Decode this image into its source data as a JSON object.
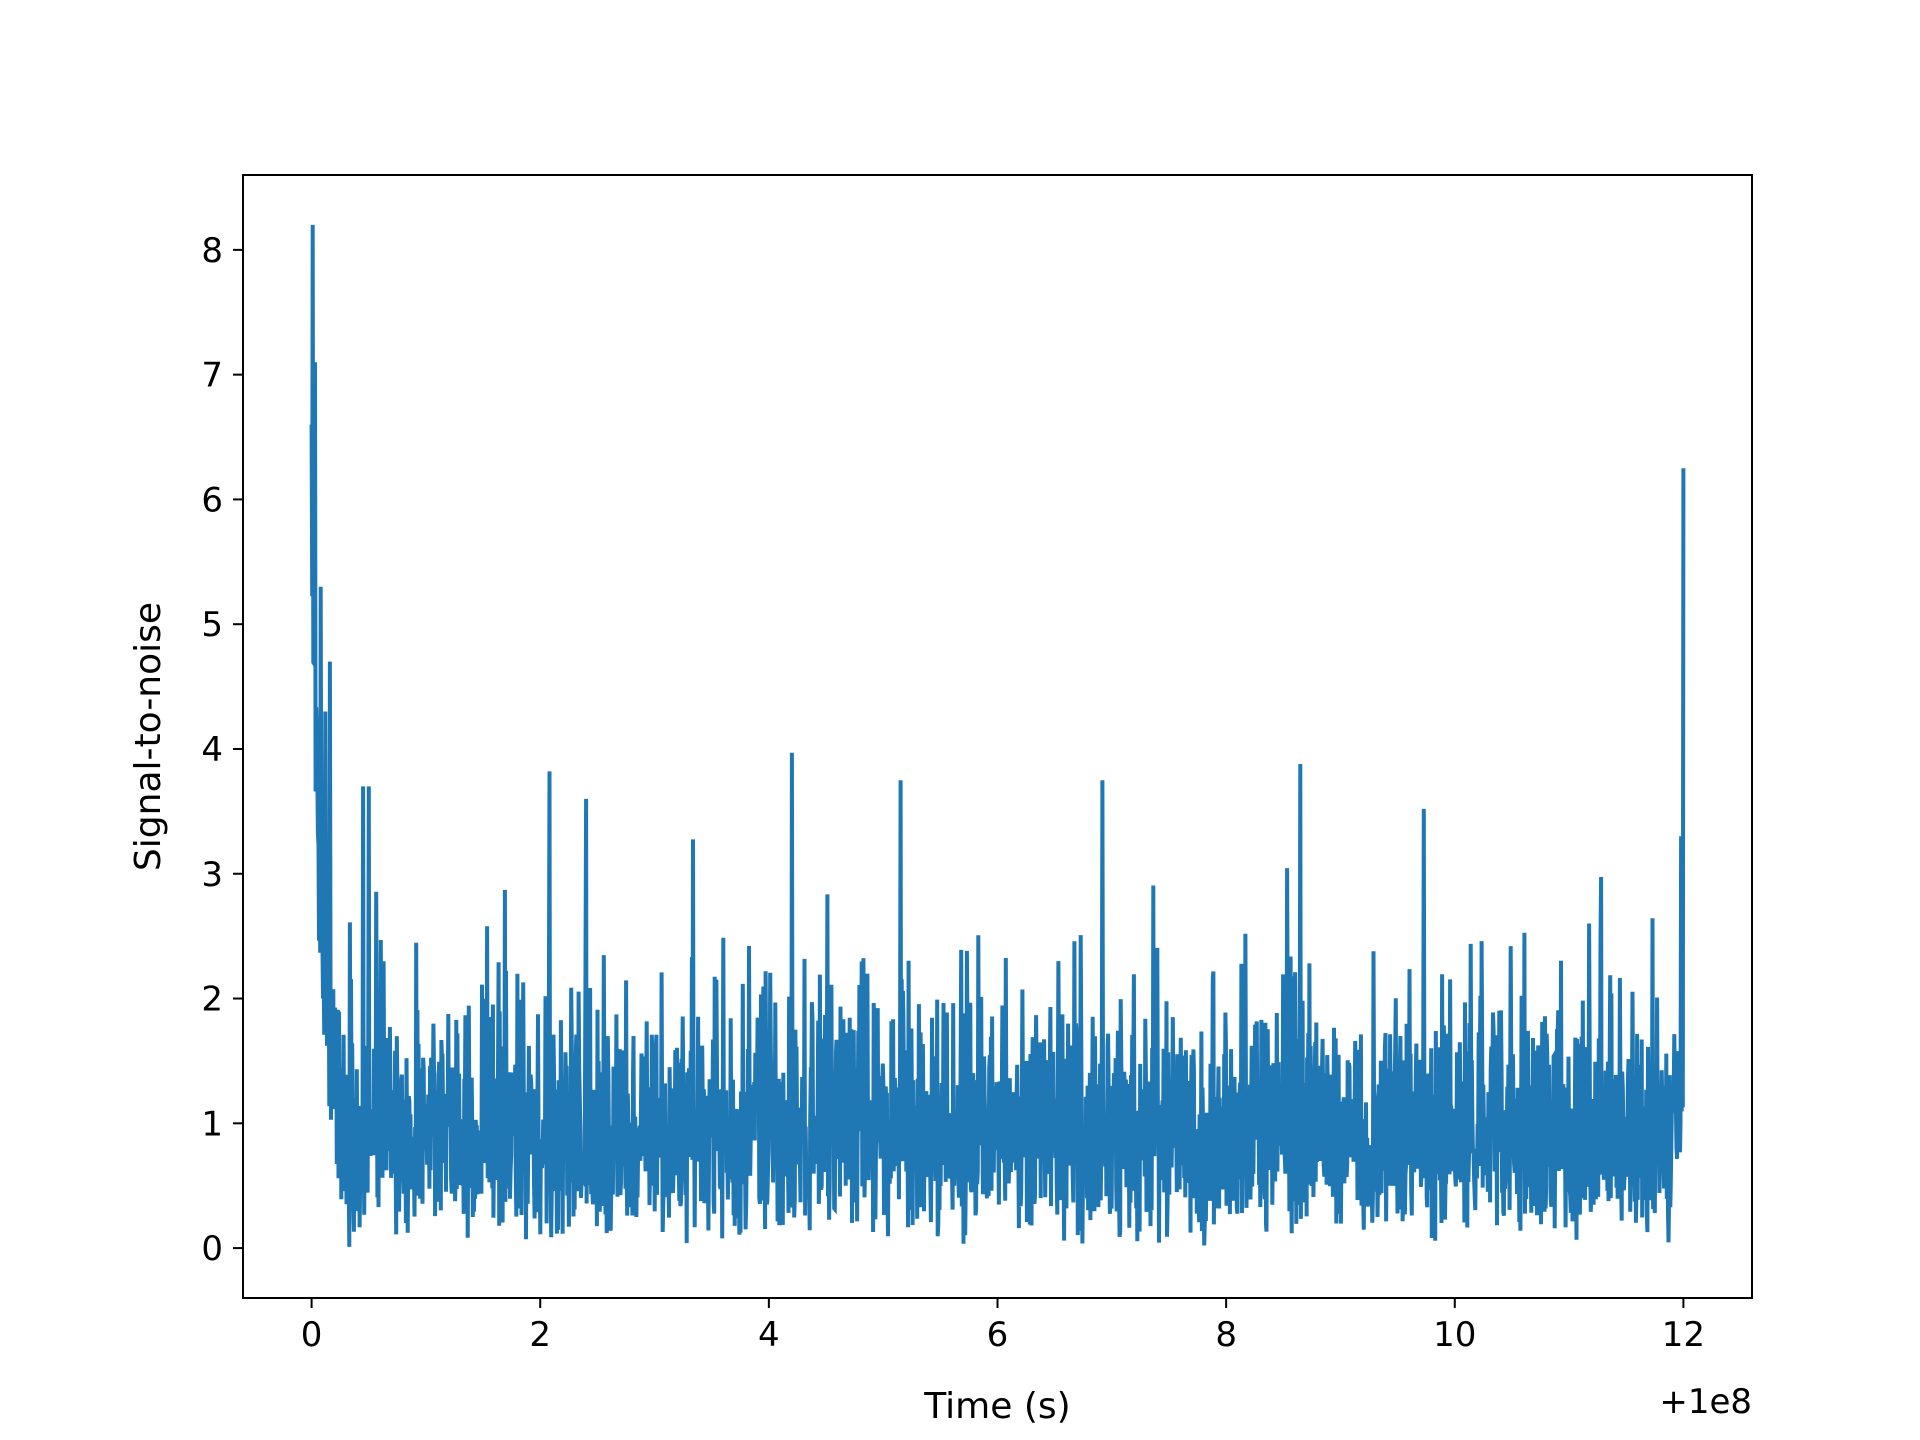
{
  "chart_data": {
    "type": "line",
    "title": "",
    "xlabel": "Time (s)",
    "ylabel": "Signal-to-noise",
    "x_offset_label": "+1e8",
    "xlim": [
      -0.6,
      12.6
    ],
    "ylim": [
      -0.4,
      8.6
    ],
    "x_ticks": [
      0,
      2,
      4,
      6,
      8,
      10,
      12
    ],
    "x_tick_labels": [
      "0",
      "2",
      "4",
      "6",
      "8",
      "10",
      "12"
    ],
    "y_ticks": [
      0,
      1,
      2,
      3,
      4,
      5,
      6,
      7,
      8
    ],
    "y_tick_labels": [
      "0",
      "1",
      "2",
      "3",
      "4",
      "5",
      "6",
      "7",
      "8"
    ],
    "grid": false,
    "legend": "none",
    "line_color": "#1f77b4",
    "x_range": [
      0,
      12
    ],
    "n_samples": 2400,
    "series_character": "noise roughly 0–2.5 with spikes up to ~4; initial transient to ~8.2 near t=0 decaying by ~0.2 s; final spike to ~6.25 at t=12",
    "notable_points": [
      {
        "x": 0.0,
        "y": 6.6
      },
      {
        "x": 0.01,
        "y": 8.2
      },
      {
        "x": 0.03,
        "y": 7.1
      },
      {
        "x": 0.05,
        "y": 3.8
      },
      {
        "x": 0.08,
        "y": 5.3
      },
      {
        "x": 0.12,
        "y": 4.3
      },
      {
        "x": 0.16,
        "y": 4.7
      },
      {
        "x": 0.45,
        "y": 3.7
      },
      {
        "x": 0.5,
        "y": 3.7
      },
      {
        "x": 2.08,
        "y": 3.82
      },
      {
        "x": 2.4,
        "y": 3.6
      },
      {
        "x": 4.2,
        "y": 3.97
      },
      {
        "x": 5.15,
        "y": 3.75
      },
      {
        "x": 6.92,
        "y": 3.75
      },
      {
        "x": 8.65,
        "y": 3.88
      },
      {
        "x": 9.73,
        "y": 3.52
      },
      {
        "x": 11.98,
        "y": 3.3
      },
      {
        "x": 12.0,
        "y": 6.25
      }
    ]
  }
}
